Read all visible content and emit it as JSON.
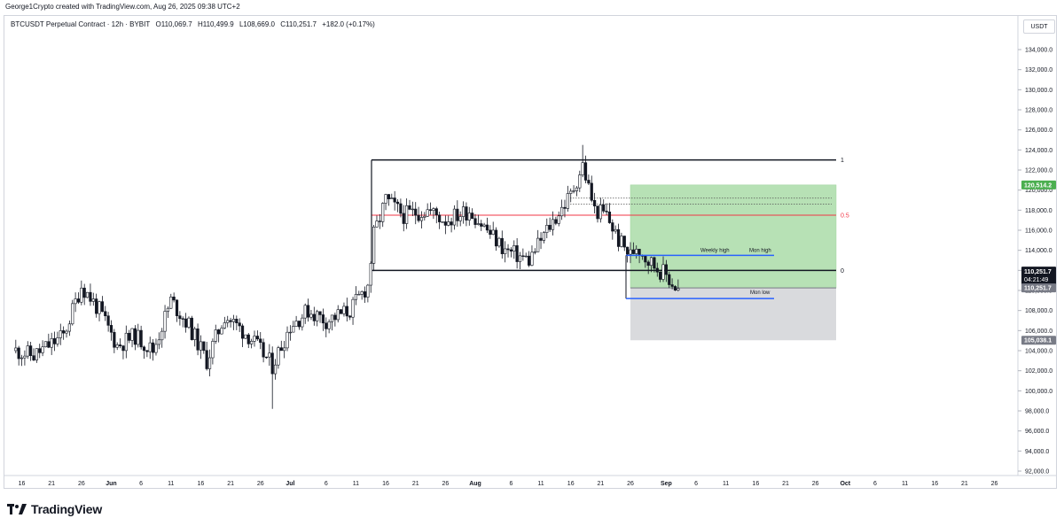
{
  "header": {
    "credit": "George1Crypto created with TradingView.com, Aug 26, 2025 09:38 UTC+2"
  },
  "legend": {
    "symbol": "BTCUSDT Perpetual Contract · 12h · BYBIT",
    "open": "O110,069.7",
    "high": "H110,499.9",
    "low": "L108,669.0",
    "close": "C110,251.7",
    "change": "+182.0 (+0.17%)"
  },
  "price_axis": {
    "currency": "USDT"
  },
  "footer": {
    "brand": "TradingView"
  },
  "colors": {
    "up": "#131722",
    "down": "#131722",
    "red_line": "#f23645",
    "blue_line": "#2962ff",
    "profit_zone": "#b7e1b5",
    "loss_zone": "#d9dadd",
    "price_badge": "#131722",
    "target_badge": "#4caf50",
    "stop_badge": "#787b86"
  },
  "chart_data": {
    "type": "candlestick",
    "interval": "12h",
    "ylim": [
      92000,
      136000
    ],
    "y_ticks": [
      "92,000.0",
      "94,000.0",
      "96,000.0",
      "98,000.0",
      "100,000.0",
      "102,000.0",
      "104,000.0",
      "106,000.0",
      "108,000.0",
      "110,000.0",
      "112,000.0",
      "114,000.0",
      "116,000.0",
      "118,000.0",
      "120,000.0",
      "122,000.0",
      "124,000.0",
      "126,000.0",
      "128,000.0",
      "130,000.0",
      "132,000.0",
      "134,000.0"
    ],
    "x_ticks": [
      "16",
      "21",
      "26",
      "Jun",
      "6",
      "11",
      "16",
      "21",
      "26",
      "Jul",
      "6",
      "11",
      "16",
      "21",
      "26",
      "Aug",
      "6",
      "11",
      "16",
      "21",
      "26",
      "Sep",
      "6",
      "11",
      "16",
      "21",
      "26",
      "Oct",
      "6",
      "11",
      "16",
      "21",
      "26"
    ],
    "x_tick_days": [
      -102,
      -97,
      -92,
      -87,
      -82,
      -77,
      -72,
      -67,
      -62,
      -57,
      -51,
      -46,
      -41,
      -36,
      -31,
      -26,
      -20,
      -15,
      -10,
      -5,
      0,
      6,
      11,
      16,
      21,
      26,
      31,
      36,
      41,
      46,
      51,
      56,
      61
    ],
    "candle_anchors": [
      [
        -103,
        104000
      ],
      [
        -100,
        103500
      ],
      [
        -95,
        105500
      ],
      [
        -92,
        110500
      ],
      [
        -89,
        108000
      ],
      [
        -86,
        104500
      ],
      [
        -83,
        105500
      ],
      [
        -80,
        104000
      ],
      [
        -77,
        109000
      ],
      [
        -74,
        106500
      ],
      [
        -71,
        103000
      ],
      [
        -68,
        107500
      ],
      [
        -64,
        105500
      ],
      [
        -60,
        102500
      ],
      [
        -57,
        106500
      ],
      [
        -54,
        108000
      ],
      [
        -51,
        107000
      ],
      [
        -47,
        108000
      ],
      [
        -44,
        110500
      ],
      [
        -43,
        115500
      ],
      [
        -41,
        119000
      ],
      [
        -38,
        117500
      ],
      [
        -34,
        118000
      ],
      [
        -31,
        117000
      ],
      [
        -27,
        118000
      ],
      [
        -24,
        116000
      ],
      [
        -21,
        114000
      ],
      [
        -17,
        113000
      ],
      [
        -14,
        116000
      ],
      [
        -10,
        119500
      ],
      [
        -8,
        122500
      ],
      [
        -6,
        118000
      ],
      [
        -4,
        117500
      ],
      [
        -2,
        115000
      ],
      [
        0,
        113500
      ],
      [
        1,
        114500
      ],
      [
        3,
        113000
      ],
      [
        5,
        112000
      ],
      [
        6,
        111500
      ],
      [
        8,
        110000
      ]
    ],
    "candle_wicks": {
      "high": [
        [
          -8,
          124500
        ]
      ],
      "low": [
        [
          -60,
          98200
        ]
      ]
    },
    "range_levels": [
      {
        "label": "1",
        "value": 123000
      },
      {
        "label": "0.5",
        "value": 117500
      },
      {
        "label": "0",
        "value": 112000
      }
    ],
    "weekly_high": {
      "label": "Weekly high",
      "value": 113500
    },
    "mon_high": {
      "label": "Mon high",
      "value": 113500
    },
    "mon_low": {
      "label": "Mon low",
      "value": 109200
    },
    "target_dotted": [
      119200,
      118600
    ],
    "position": {
      "entry": 110251.7,
      "target": 120514.2,
      "stop": 105038.1
    },
    "badges": {
      "target": "120,514.2",
      "last_price": "110,251.7",
      "countdown": "04:21:49",
      "entry": "110,251.7",
      "stop": "105,038.1"
    }
  }
}
